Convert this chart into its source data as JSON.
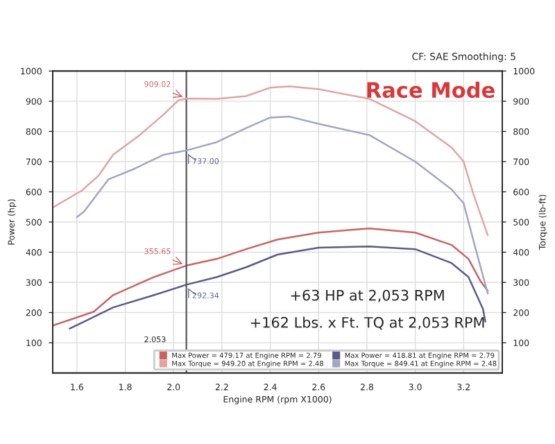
{
  "chart_data": {
    "type": "line",
    "title": "Race Mode",
    "subtitle": "CF: SAE Smoothing: 5",
    "xlabel": "Engine RPM (rpm X1000)",
    "ylabel": "Power (hp)",
    "y2label": "Torque (lb-ft)",
    "xlim": [
      1.5,
      3.36
    ],
    "xticks": [
      1.6,
      1.8,
      {
        "value": 2.0,
        "label": "2.0"
      },
      2.2,
      2.4,
      2.6,
      2.8,
      {
        "value": 3.0,
        "label": "3.0"
      },
      3.2
    ],
    "ylim": [
      0,
      1000
    ],
    "yticks": [
      100,
      200,
      300,
      400,
      500,
      600,
      700,
      800,
      900,
      1000
    ],
    "y2lim": [
      0,
      1000
    ],
    "y2ticks": [
      100,
      200,
      300,
      400,
      500,
      600,
      700,
      800,
      900,
      1000
    ],
    "grid": true,
    "legend": "bottom right",
    "series": [
      {
        "name": "Max Power = 479.17 at Engine RPM = 2.79",
        "color": "#c86464",
        "x": [
          1.5,
          1.67,
          1.75,
          1.92,
          2.053,
          2.18,
          2.3,
          2.43,
          2.6,
          2.81,
          3.0,
          3.15,
          3.22,
          3.27,
          3.3
        ],
        "values": [
          157,
          203,
          258,
          318,
          355.65,
          378,
          410,
          442,
          465,
          479,
          465,
          424,
          378,
          304,
          272
        ],
        "value_labels": [
          null,
          null,
          null,
          null,
          "355.65",
          null,
          null,
          null,
          null,
          null,
          null,
          null,
          null,
          null,
          null
        ]
      },
      {
        "name": "Max Power = 418.81 at Engine RPM = 2.79",
        "color": "#5a5a8c",
        "x": [
          1.57,
          1.63,
          1.75,
          1.92,
          2.053,
          2.18,
          2.3,
          2.43,
          2.6,
          2.81,
          3.0,
          3.15,
          3.22,
          3.28,
          3.29
        ],
        "values": [
          147,
          170,
          217,
          258,
          292.34,
          318,
          350,
          392,
          415,
          419,
          410,
          364,
          318,
          212,
          170
        ],
        "value_labels": [
          null,
          null,
          null,
          null,
          "292.34",
          null,
          null,
          null,
          null,
          null,
          null,
          null,
          null,
          null,
          null
        ]
      },
      {
        "name": "Max Torque = 949.20 at Engine RPM = 2.48",
        "color": "#e0a4a4",
        "axis": "y2",
        "x": [
          1.5,
          1.62,
          1.69,
          1.75,
          1.86,
          1.96,
          2.02,
          2.053,
          2.18,
          2.3,
          2.4,
          2.48,
          2.6,
          2.81,
          3.0,
          3.15,
          3.2,
          3.24,
          3.3
        ],
        "values": [
          548,
          604,
          654,
          723,
          788,
          857,
          903,
          909.02,
          908,
          917,
          945,
          949,
          940,
          908,
          834,
          747,
          700,
          594,
          456
        ],
        "value_labels": [
          null,
          null,
          null,
          null,
          null,
          null,
          null,
          "909.02",
          null,
          null,
          null,
          null,
          null,
          null,
          null,
          null,
          null,
          null,
          null
        ]
      },
      {
        "name": "Max Torque = 849.41 at Engine RPM = 2.48",
        "color": "#a4a4c4",
        "axis": "y2",
        "x": [
          1.6,
          1.63,
          1.73,
          1.84,
          1.96,
          2.053,
          2.18,
          2.3,
          2.4,
          2.48,
          2.6,
          2.81,
          3.0,
          3.15,
          3.2,
          3.25,
          3.3
        ],
        "values": [
          516,
          535,
          641,
          677,
          723,
          737.0,
          765,
          811,
          846,
          849,
          825,
          788,
          700,
          608,
          562,
          410,
          263
        ],
        "value_labels": [
          null,
          null,
          null,
          null,
          null,
          "737.00",
          null,
          null,
          null,
          null,
          null,
          null,
          null,
          null,
          null,
          null,
          null
        ]
      }
    ],
    "ref_lines": [
      {
        "axis": "x",
        "value": 2.053,
        "label": "2.053",
        "color": "#555555"
      }
    ],
    "annotations": [
      "+63 HP at 2,053 RPM",
      "+162 Lbs. x Ft. TQ at 2,053 RPM"
    ]
  }
}
